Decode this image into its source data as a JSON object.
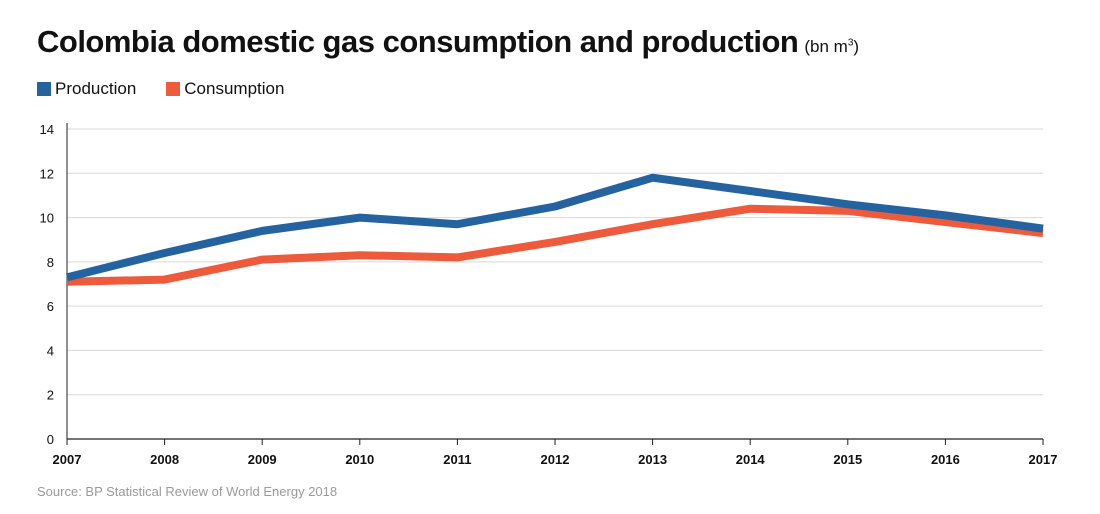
{
  "title": "Colombia domestic gas consumption and production",
  "unit_prefix": "(bn m",
  "unit_sup": "3",
  "unit_suffix": ")",
  "source": "Source: BP Statistical Review of World Energy 2018",
  "colors": {
    "production": "#2563a0",
    "consumption": "#ee5a3c",
    "grid": "#d9d9d9",
    "axis": "#222222"
  },
  "chart_data": {
    "type": "line",
    "x": [
      "2007",
      "2008",
      "2009",
      "2010",
      "2011",
      "2012",
      "2013",
      "2014",
      "2015",
      "2016",
      "2017"
    ],
    "series": [
      {
        "name": "Production",
        "values": [
          7.3,
          8.4,
          9.4,
          10.0,
          9.7,
          10.5,
          11.8,
          11.2,
          10.6,
          10.1,
          9.5
        ]
      },
      {
        "name": "Consumption",
        "values": [
          7.1,
          7.2,
          8.1,
          8.3,
          8.2,
          8.9,
          9.7,
          10.4,
          10.3,
          9.8,
          9.3
        ]
      }
    ],
    "ylim": [
      0,
      14
    ],
    "yticks": [
      0,
      2,
      4,
      6,
      8,
      10,
      12,
      14
    ],
    "grid": true,
    "legend": "top-left"
  }
}
